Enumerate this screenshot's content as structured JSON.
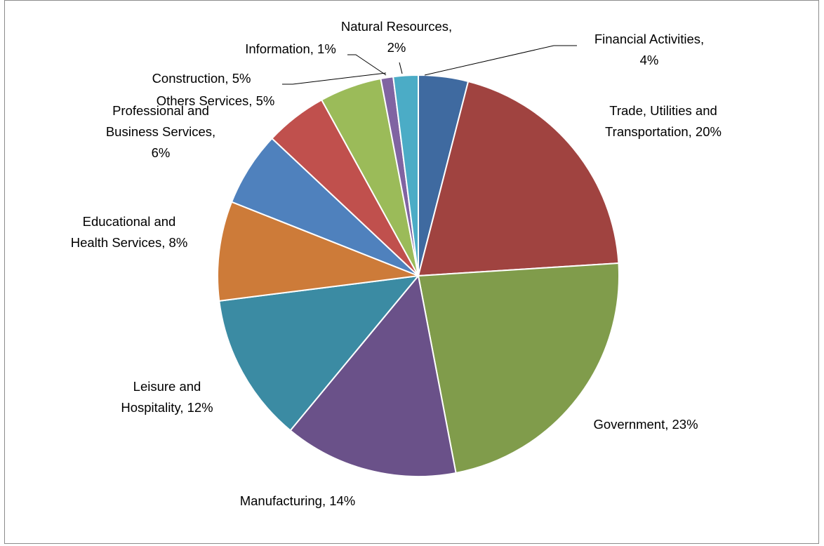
{
  "chart_data": {
    "type": "pie",
    "title": "",
    "start_angle_deg": 0,
    "direction": "clockwise",
    "legend": "none",
    "slices": [
      {
        "label_lines": [
          "Financial Activities,",
          "4%"
        ],
        "value": 4,
        "color": "#3f6aa0"
      },
      {
        "label_lines": [
          "Trade, Utilities and",
          "Transportation, 20%"
        ],
        "value": 20,
        "color": "#a04340"
      },
      {
        "label_lines": [
          "Government, 23%"
        ],
        "value": 23,
        "color": "#809c4b"
      },
      {
        "label_lines": [
          "Manufacturing, 14%"
        ],
        "value": 14,
        "color": "#6a5189"
      },
      {
        "label_lines": [
          "Leisure and",
          "Hospitality, 12%"
        ],
        "value": 12,
        "color": "#3b8ba3"
      },
      {
        "label_lines": [
          "Educational and",
          "Health Services, 8%"
        ],
        "value": 8,
        "color": "#cd7b39"
      },
      {
        "label_lines": [
          "Professional and",
          "Business Services,",
          "6%"
        ],
        "value": 6,
        "color": "#4f81bd"
      },
      {
        "label_lines": [
          "Others Services, 5%"
        ],
        "value": 5,
        "color": "#c0504d"
      },
      {
        "label_lines": [
          "Construction, 5%"
        ],
        "value": 5,
        "color": "#9bbb59"
      },
      {
        "label_lines": [
          "Information, 1%"
        ],
        "value": 1,
        "color": "#8064a2"
      },
      {
        "label_lines": [
          "Natural Resources,",
          "2%"
        ],
        "value": 2,
        "color": "#4bacc6"
      }
    ]
  }
}
